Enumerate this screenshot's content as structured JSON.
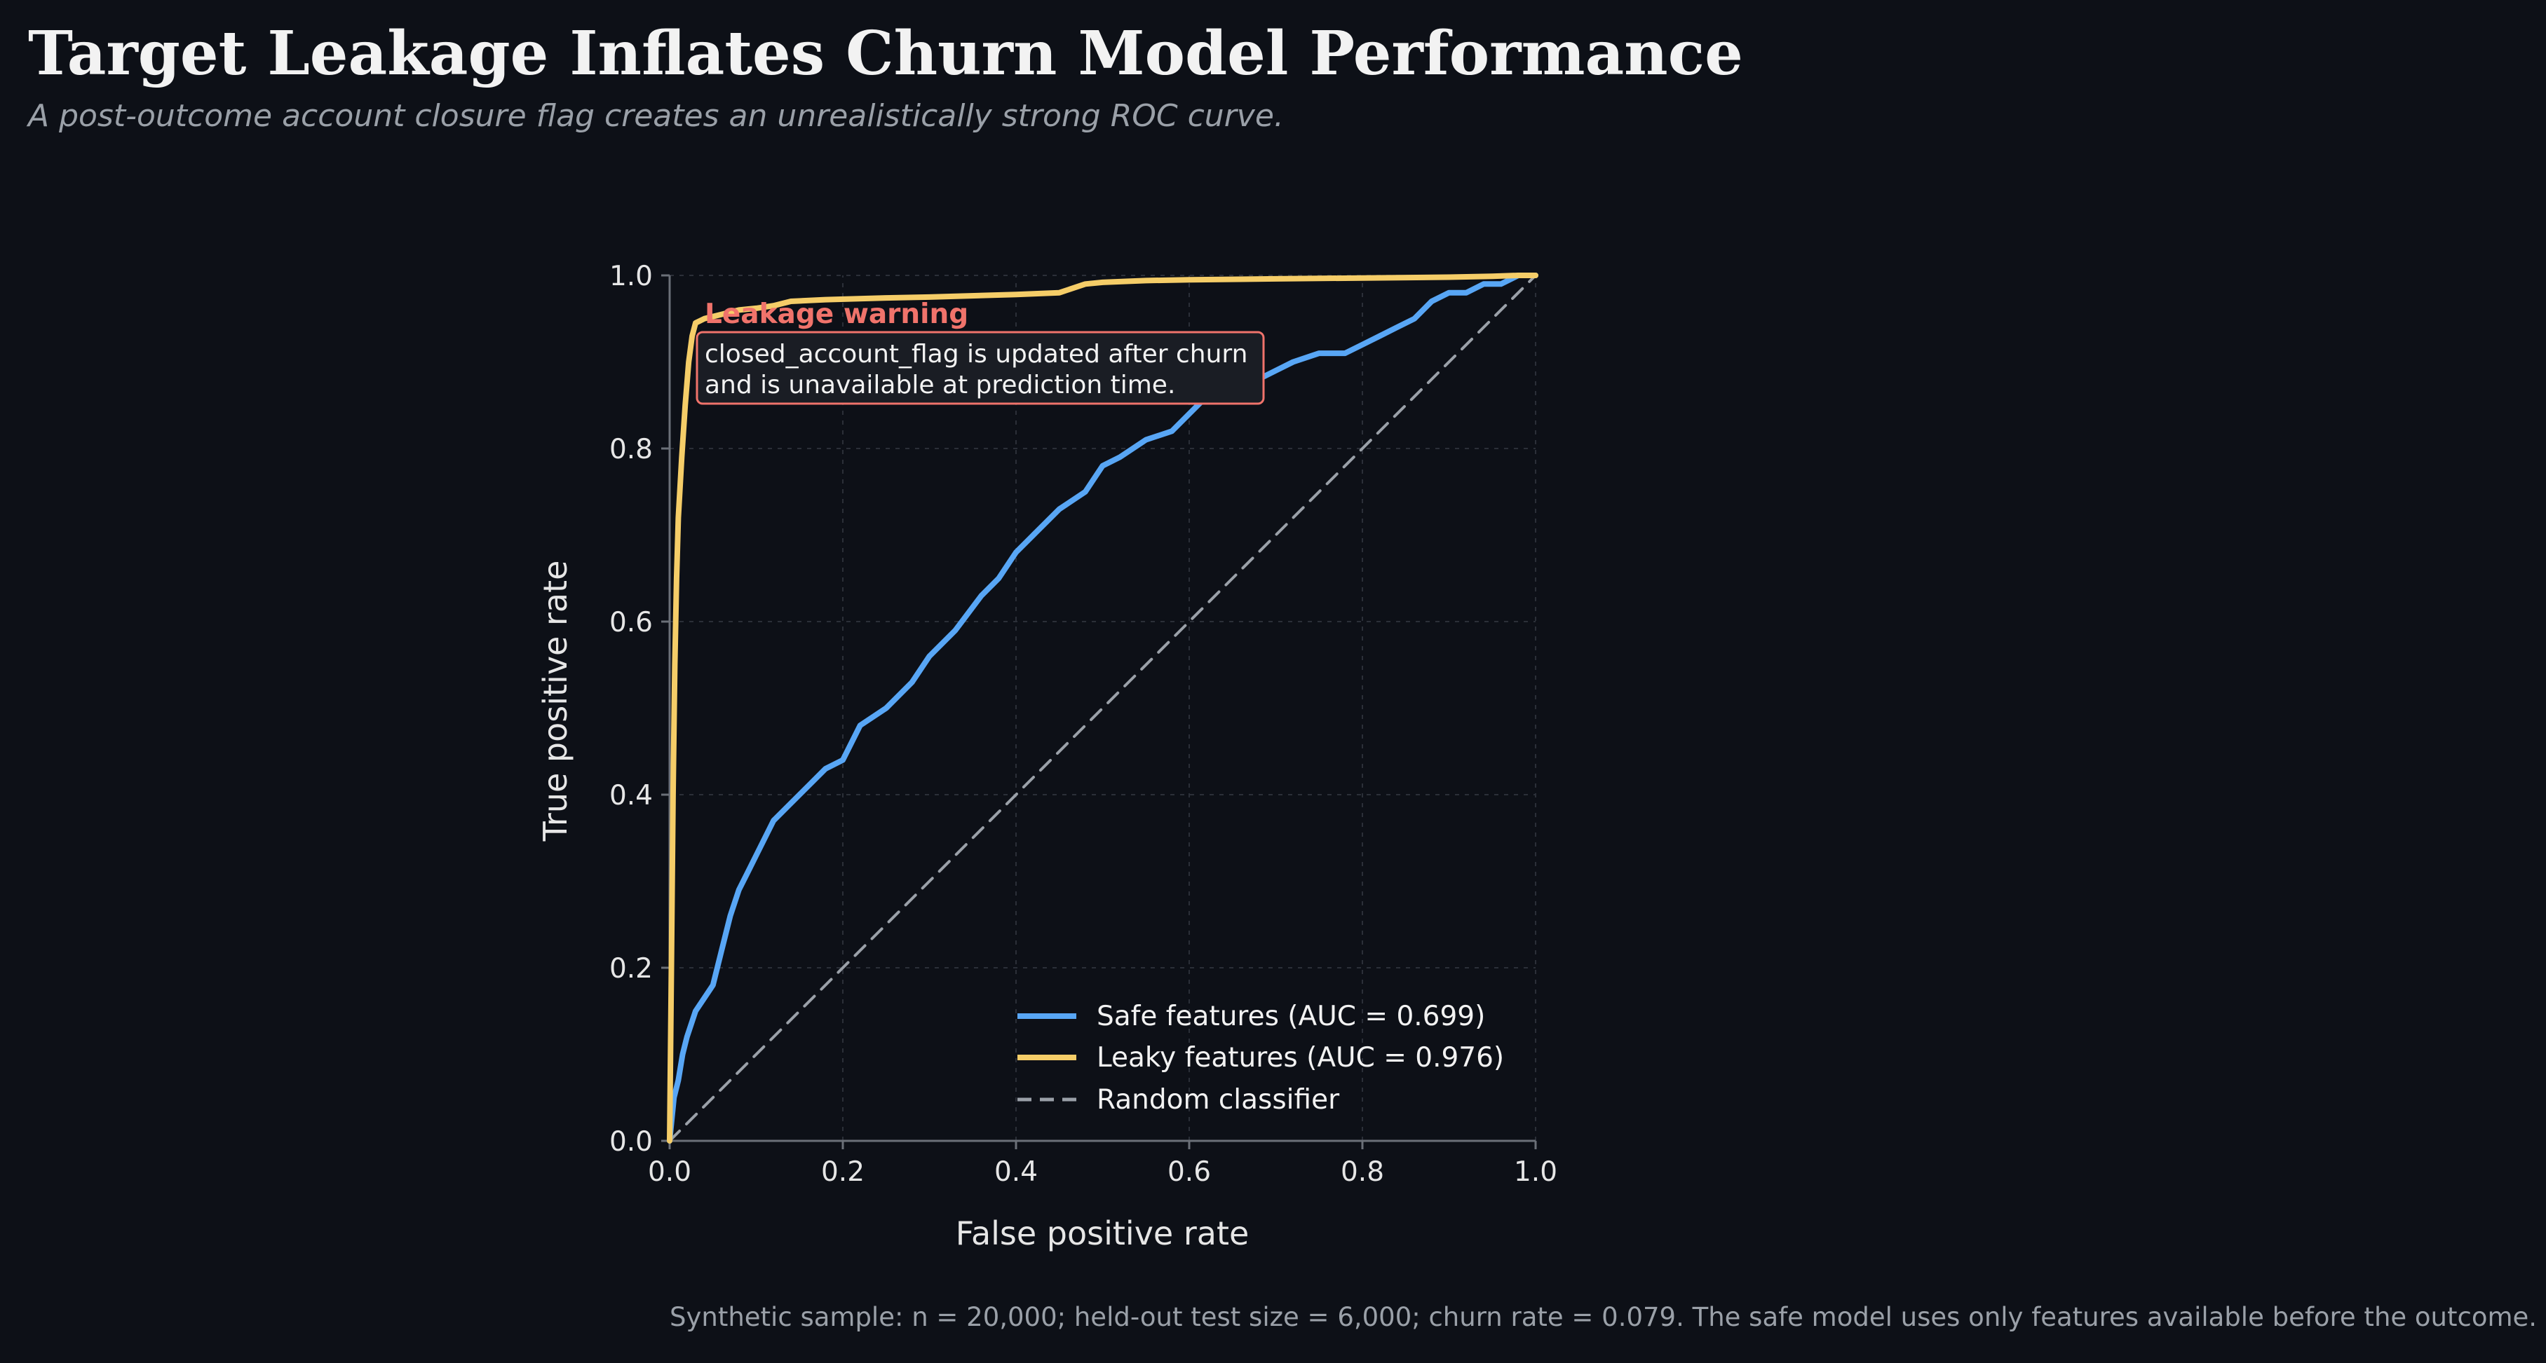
{
  "title": "Target Leakage Inflates Churn Model Performance",
  "subtitle": "A post-outcome account closure flag creates an unrealistically strong ROC curve.",
  "footnote": "Synthetic sample: n = 20,000; held-out test size = 6,000; churn rate = 0.079. The safe model uses only features available before the outcome.",
  "annotation": {
    "heading": "Leakage warning",
    "line1": "closed_account_flag is updated after churn",
    "line2": "and is unavailable at prediction time."
  },
  "colors": {
    "background": "#0d1017",
    "safe": "#58a6f5",
    "leaky": "#f5cd68",
    "random": "#9aa0a8",
    "warning": "#f0736b"
  },
  "chart_data": {
    "type": "line",
    "xlabel": "False positive rate",
    "ylabel": "True positive rate",
    "xlim": [
      0,
      1
    ],
    "ylim": [
      0,
      1
    ],
    "xticks": [
      "0.0",
      "0.2",
      "0.4",
      "0.6",
      "0.8",
      "1.0"
    ],
    "yticks": [
      "0.0",
      "0.2",
      "0.4",
      "0.6",
      "0.8",
      "1.0"
    ],
    "grid": true,
    "legend_position": "lower-right",
    "series": [
      {
        "name": "Safe features (AUC = 0.699)",
        "style": "solid",
        "x": [
          0,
          0.005,
          0.01,
          0.015,
          0.02,
          0.03,
          0.05,
          0.06,
          0.07,
          0.08,
          0.09,
          0.1,
          0.12,
          0.14,
          0.16,
          0.18,
          0.2,
          0.22,
          0.25,
          0.28,
          0.3,
          0.33,
          0.36,
          0.38,
          0.4,
          0.42,
          0.45,
          0.48,
          0.5,
          0.52,
          0.55,
          0.58,
          0.6,
          0.62,
          0.65,
          0.68,
          0.7,
          0.72,
          0.75,
          0.78,
          0.8,
          0.82,
          0.84,
          0.86,
          0.88,
          0.9,
          0.92,
          0.94,
          0.96,
          0.98,
          1.0
        ],
        "y": [
          0,
          0.05,
          0.07,
          0.1,
          0.12,
          0.15,
          0.18,
          0.22,
          0.26,
          0.29,
          0.31,
          0.33,
          0.37,
          0.39,
          0.41,
          0.43,
          0.44,
          0.48,
          0.5,
          0.53,
          0.56,
          0.59,
          0.63,
          0.65,
          0.68,
          0.7,
          0.73,
          0.75,
          0.78,
          0.79,
          0.81,
          0.82,
          0.84,
          0.86,
          0.87,
          0.88,
          0.89,
          0.9,
          0.91,
          0.91,
          0.92,
          0.93,
          0.94,
          0.95,
          0.97,
          0.98,
          0.98,
          0.99,
          0.99,
          1.0,
          1.0
        ]
      },
      {
        "name": "Leaky features (AUC = 0.976)",
        "style": "solid",
        "x": [
          0,
          0.002,
          0.004,
          0.006,
          0.008,
          0.01,
          0.014,
          0.018,
          0.022,
          0.026,
          0.03,
          0.04,
          0.06,
          0.08,
          0.1,
          0.12,
          0.14,
          0.18,
          0.25,
          0.3,
          0.4,
          0.45,
          0.48,
          0.5,
          0.55,
          0.6,
          0.7,
          0.8,
          0.9,
          0.95,
          0.98,
          1.0
        ],
        "y": [
          0,
          0.2,
          0.4,
          0.55,
          0.65,
          0.72,
          0.79,
          0.85,
          0.9,
          0.93,
          0.945,
          0.95,
          0.955,
          0.96,
          0.962,
          0.965,
          0.97,
          0.972,
          0.974,
          0.975,
          0.978,
          0.98,
          0.99,
          0.992,
          0.994,
          0.995,
          0.996,
          0.997,
          0.998,
          0.999,
          1.0,
          1.0
        ]
      },
      {
        "name": "Random classifier",
        "style": "dashed",
        "x": [
          0,
          1
        ],
        "y": [
          0,
          1
        ]
      }
    ]
  }
}
